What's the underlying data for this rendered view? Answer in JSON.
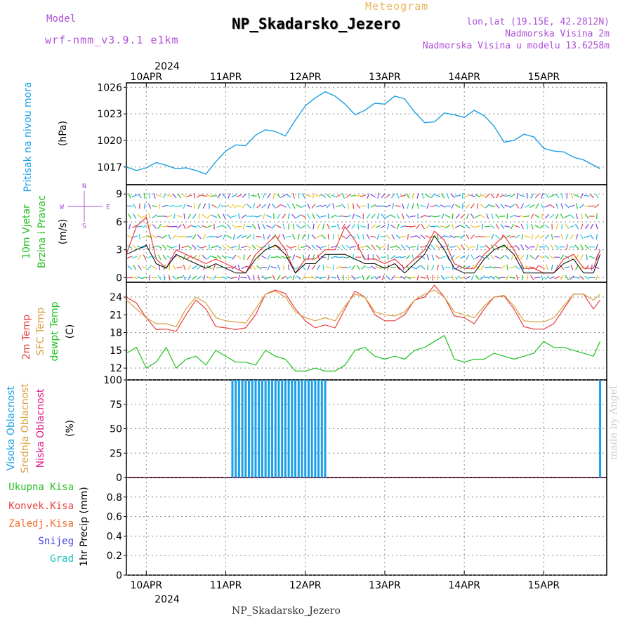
{
  "header": {
    "model_label": "Model",
    "model_name": "wrf-nmm_v3.9.1 e1km",
    "product": "Meteogram",
    "station": "NP_Skadarsko_Jezero",
    "lonlat": "lon,lat (19.15E, 42.2812N)",
    "elevation": "Nadmorska Visina 2m",
    "elevation_model": "Nadmorska Visina u modelu 13.6258m"
  },
  "footer": {
    "station": "NP_Skadarsko_Jezero",
    "made_by": "made by Angel"
  },
  "colors": {
    "pressure": "#1e9fe0",
    "temp": "#e84040",
    "sfc": "#d8a040",
    "dewpt": "#20c020",
    "cloud_high": "#1aa0e8",
    "speed_avg": "#e84040",
    "speed_max": "#000000"
  },
  "axes": {
    "year_top": "2024",
    "year_bottom": "2024",
    "dates": [
      "10APR",
      "11APR",
      "12APR",
      "13APR",
      "14APR",
      "15APR"
    ]
  },
  "panels": {
    "pressure": {
      "label": "Pritisak na nivou mora",
      "unit": "(hPa)"
    },
    "wind": {
      "label1": "10m Vjetar",
      "label2": "Brzina i Pravac",
      "unit": "(m/s)",
      "compass": {
        "n": "N",
        "s": "S",
        "e": "E",
        "w": "W"
      }
    },
    "temp": {
      "label1": "2m Temp",
      "label2": "SFC Temp",
      "label3": "dewpt Temp",
      "unit": "(C)"
    },
    "cloud": {
      "label1": "Visoka Oblacnost",
      "label2": "Srednja Oblacnost",
      "label3": "Niska Oblacnost",
      "unit": "(%)"
    },
    "precip": {
      "label_total": "Ukupna Kisa",
      "label_conv": "Konvek.Kisa",
      "label_frozen": "Zaledj.Kisa",
      "label_snow": "Snijeg",
      "label_grad": "Grad",
      "unit": "1hr Precip (mm)"
    }
  },
  "chart_data": [
    {
      "type": "line",
      "title": "Pritisak na nivou mora",
      "ylabel": "(hPa)",
      "ylim": [
        1015,
        1026.5
      ],
      "yticks": [
        1017,
        1020,
        1023,
        1026
      ],
      "x_hours_from_10APR00": [
        -6,
        -3,
        0,
        3,
        6,
        9,
        12,
        15,
        18,
        21,
        24,
        27,
        30,
        33,
        36,
        39,
        42,
        45,
        48,
        51,
        54,
        57,
        60,
        63,
        66,
        69,
        72,
        75,
        78,
        81,
        84,
        87,
        90,
        93,
        96,
        99,
        102,
        105,
        108,
        111,
        114,
        117,
        120,
        123,
        126,
        129,
        132,
        137
      ],
      "series": [
        {
          "name": "",
          "values": [
            1017.0,
            1016.6,
            1016.9,
            1017.5,
            1017.2,
            1016.8,
            1016.9,
            1016.6,
            1016.2,
            1017.6,
            1018.8,
            1019.5,
            1019.4,
            1020.6,
            1021.2,
            1021.0,
            1020.5,
            1022.3,
            1023.9,
            1024.8,
            1025.5,
            1025.0,
            1024.1,
            1022.9,
            1023.4,
            1024.2,
            1024.1,
            1025.0,
            1024.7,
            1023.2,
            1022.0,
            1022.1,
            1023.1,
            1022.9,
            1022.6,
            1023.4,
            1022.8,
            1021.6,
            1019.8,
            1020.0,
            1020.7,
            1020.4,
            1019.1,
            1018.8,
            1018.7,
            1018.1,
            1017.8,
            1016.8
          ]
        }
      ]
    },
    {
      "type": "line",
      "title": "10m Vjetar Brzina i Pravac",
      "ylabel": "(m/s)",
      "ylim": [
        -0.5,
        10
      ],
      "yticks": [
        0,
        3,
        6,
        9
      ],
      "x_hours_from_10APR00": [
        -6,
        -3,
        0,
        3,
        6,
        9,
        12,
        15,
        18,
        21,
        24,
        27,
        30,
        33,
        36,
        39,
        42,
        45,
        48,
        51,
        54,
        57,
        60,
        63,
        66,
        69,
        72,
        75,
        78,
        81,
        84,
        87,
        90,
        93,
        96,
        99,
        102,
        105,
        108,
        111,
        114,
        117,
        120,
        123,
        126,
        129,
        132,
        135,
        137
      ],
      "series": [
        {
          "name": "",
          "values": [
            2.5,
            5.5,
            6.5,
            2.0,
            1.0,
            3.0,
            2.5,
            2.0,
            1.5,
            2.0,
            1.5,
            1.0,
            0.5,
            2.5,
            3.5,
            4.5,
            3.0,
            0.5,
            2.0,
            2.0,
            3.0,
            3.0,
            5.5,
            4.0,
            2.0,
            2.0,
            1.5,
            2.0,
            1.0,
            2.0,
            3.0,
            5.0,
            4.0,
            1.5,
            1.0,
            1.0,
            2.5,
            3.5,
            4.5,
            3.0,
            1.0,
            1.0,
            0.5,
            0.5,
            2.0,
            2.5,
            1.0,
            1.0,
            3.0
          ]
        },
        {
          "name": "",
          "values": [
            2.5,
            3.0,
            3.5,
            1.5,
            1.0,
            2.5,
            2.0,
            1.5,
            1.0,
            1.5,
            1.0,
            0.5,
            0.5,
            2.0,
            3.0,
            3.5,
            2.5,
            0.5,
            1.5,
            1.5,
            2.5,
            2.5,
            2.5,
            2.0,
            1.5,
            1.5,
            1.0,
            1.5,
            0.5,
            1.5,
            2.5,
            4.5,
            3.0,
            1.0,
            0.5,
            0.5,
            2.0,
            3.0,
            3.5,
            2.5,
            0.5,
            0.5,
            0.5,
            0.5,
            1.5,
            2.0,
            0.5,
            0.5,
            2.5
          ]
        }
      ]
    },
    {
      "type": "line",
      "title": "2m Temp / SFC Temp / dewpt Temp",
      "ylabel": "(C)",
      "ylim": [
        10,
        26.5
      ],
      "yticks": [
        12,
        15,
        18,
        21,
        24
      ],
      "x_hours_from_10APR00": [
        -6,
        -3,
        0,
        3,
        6,
        9,
        12,
        15,
        18,
        21,
        24,
        27,
        30,
        33,
        36,
        39,
        42,
        45,
        48,
        51,
        54,
        57,
        60,
        63,
        66,
        69,
        72,
        75,
        78,
        81,
        84,
        87,
        90,
        93,
        96,
        99,
        102,
        105,
        108,
        111,
        114,
        117,
        120,
        123,
        126,
        129,
        132,
        135,
        137
      ],
      "series": [
        {
          "name": "2m Temp",
          "values": [
            24.0,
            23.0,
            20.5,
            18.5,
            18.6,
            18.2,
            21.0,
            23.5,
            22.0,
            19.0,
            18.8,
            18.5,
            18.8,
            21.0,
            24.5,
            25.2,
            24.6,
            22.0,
            20.0,
            18.8,
            19.3,
            18.8,
            22.0,
            25.0,
            24.0,
            21.0,
            20.0,
            20.0,
            21.0,
            23.5,
            24.0,
            26.0,
            24.0,
            20.8,
            20.5,
            19.5,
            22.0,
            24.0,
            24.2,
            22.0,
            19.0,
            18.6,
            18.6,
            19.5,
            22.0,
            24.5,
            24.5,
            22.0,
            23.5
          ]
        },
        {
          "name": "SFC Temp",
          "values": [
            23.5,
            22.0,
            20.5,
            19.5,
            19.5,
            19.0,
            22.0,
            24.0,
            23.0,
            20.5,
            20.0,
            19.8,
            19.6,
            22.0,
            24.5,
            25.0,
            24.0,
            21.5,
            20.5,
            20.0,
            20.5,
            20.0,
            22.5,
            24.5,
            24.0,
            21.5,
            21.0,
            20.8,
            21.5,
            23.5,
            24.5,
            25.2,
            24.0,
            21.5,
            21.0,
            20.5,
            22.5,
            24.0,
            24.3,
            22.5,
            20.0,
            19.8,
            19.8,
            20.5,
            22.5,
            24.5,
            24.5,
            23.5,
            24.5
          ]
        },
        {
          "name": "dewpt Temp",
          "values": [
            14.5,
            15.5,
            12.0,
            13.0,
            15.5,
            12.0,
            13.5,
            14.0,
            12.5,
            15.0,
            14.0,
            13.0,
            13.0,
            12.5,
            15.0,
            14.0,
            13.5,
            11.5,
            11.5,
            12.0,
            11.5,
            11.5,
            12.5,
            15.0,
            15.5,
            14.0,
            13.5,
            14.0,
            13.5,
            15.0,
            15.5,
            16.5,
            17.5,
            13.5,
            13.0,
            13.5,
            13.5,
            14.5,
            14.0,
            13.5,
            14.0,
            14.5,
            16.5,
            15.5,
            15.5,
            15.0,
            14.5,
            14.0,
            16.5
          ]
        }
      ]
    },
    {
      "type": "bar",
      "title": "Oblacnost",
      "ylabel": "(%)",
      "ylim": [
        0,
        100
      ],
      "yticks": [
        0,
        25,
        50,
        75,
        100
      ],
      "series": [
        {
          "name": "Visoka Oblacnost",
          "x_hours_from_10APR00": [
            26,
            27,
            28,
            29,
            30,
            31,
            32,
            33,
            34,
            35,
            36,
            37,
            38,
            39,
            40,
            41,
            42,
            43,
            44,
            45,
            46,
            47,
            48,
            49,
            50,
            51,
            52,
            53,
            54,
            137
          ],
          "values": [
            100,
            100,
            100,
            100,
            100,
            100,
            100,
            100,
            100,
            100,
            100,
            100,
            100,
            100,
            100,
            100,
            100,
            100,
            100,
            100,
            100,
            100,
            100,
            100,
            100,
            100,
            100,
            100,
            100,
            100
          ]
        }
      ]
    },
    {
      "type": "bar",
      "title": "1hr Precip",
      "ylabel": "1hr Precip (mm)",
      "ylim": [
        0,
        1.0
      ],
      "yticks": [
        0,
        0.2,
        0.4,
        0.6,
        0.8
      ],
      "series": []
    }
  ]
}
